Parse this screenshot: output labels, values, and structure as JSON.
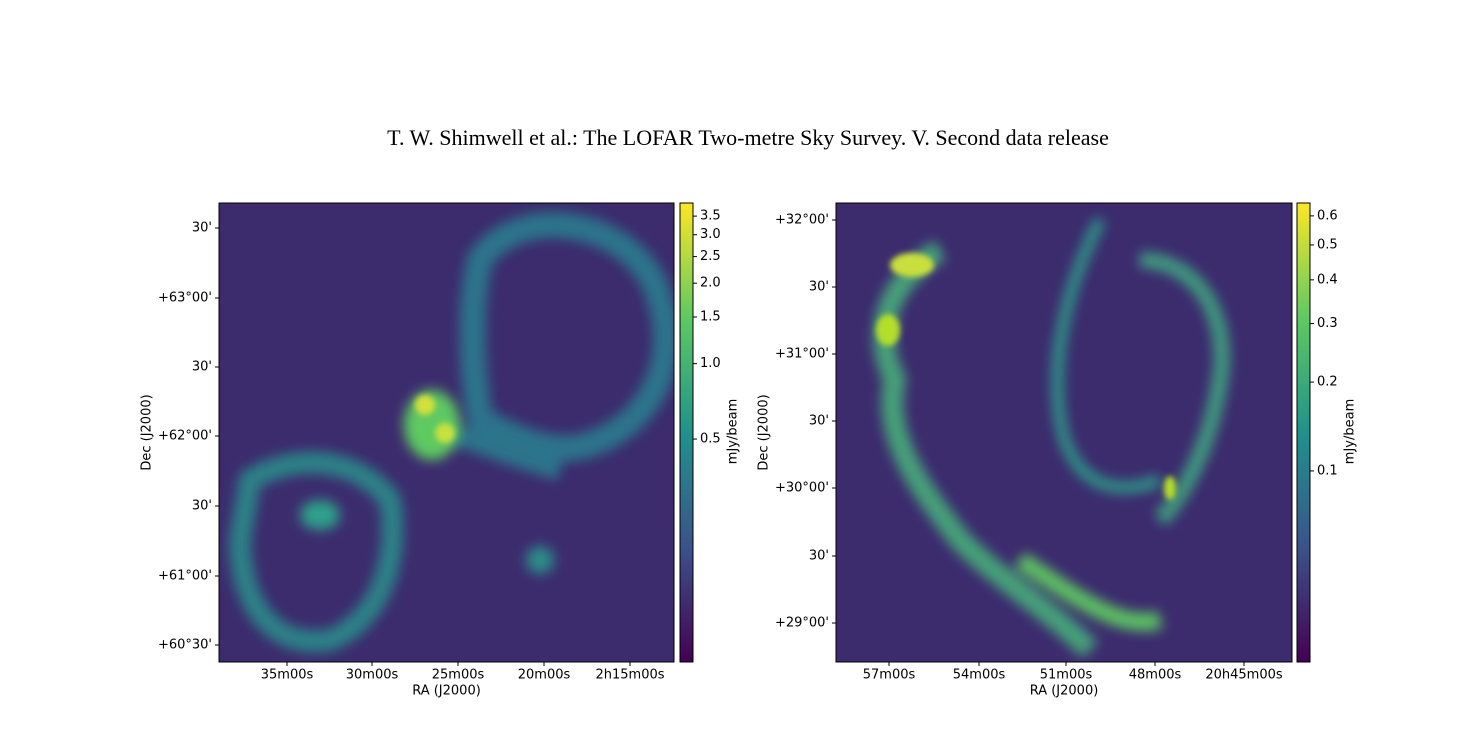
{
  "header": {
    "title": "T. W. Shimwell et al.: The LOFAR Two-metre Sky Survey. V. Second data release"
  },
  "panels": [
    {
      "x_label": "RA (J2000)",
      "y_label": "Dec (J2000)",
      "x_ticks": [
        "35m00s",
        "30m00s",
        "25m00s",
        "20m00s",
        "2h15m00s"
      ],
      "y_ticks": [
        "30'",
        "+63°00'",
        "30'",
        "+62°00'",
        "30'",
        "+61°00'",
        "+60°30'"
      ],
      "colorbar": {
        "label": "mJy/beam",
        "scale": "log",
        "clim": [
          0,
          3.9
        ],
        "ticks": [
          0.5,
          {
            "value": 1,
            "label": "1.0"
          },
          1.5,
          {
            "value": 2,
            "label": "2.0"
          },
          2.5,
          {
            "value": 3,
            "label": "3.0"
          },
          3.5
        ]
      }
    },
    {
      "x_label": "RA (J2000)",
      "y_label": "Dec (J2000)",
      "x_ticks": [
        "57m00s",
        "54m00s",
        "51m00s",
        "48m00s",
        "20h45m00s"
      ],
      "y_ticks": [
        "+32°00'",
        "30'",
        "+31°00'",
        "30'",
        "+30°00'",
        "30'",
        "+29°00'"
      ],
      "colorbar": {
        "label": "mJy/beam",
        "scale": "log",
        "clim": [
          0,
          0.65
        ],
        "ticks": [
          0.1,
          0.2,
          0.3,
          0.4,
          0.5,
          0.6
        ]
      }
    }
  ]
}
